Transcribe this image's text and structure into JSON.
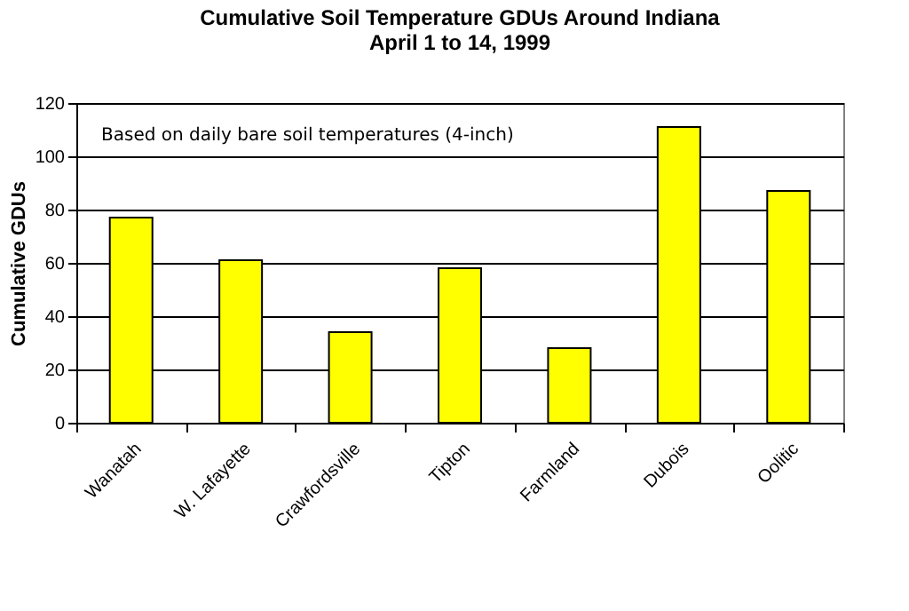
{
  "chart_data": {
    "type": "bar",
    "title": "Cumulative Soil Temperature GDUs Around Indiana",
    "subtitle": "April 1 to 14, 1999",
    "ylabel": "Cumulative GDUs",
    "categories": [
      "Wanatah",
      "W. Lafayette",
      "Crawfordsville",
      "Tipton",
      "Farmland",
      "Dubois",
      "Oolitic"
    ],
    "values": [
      77,
      61,
      34,
      58,
      28,
      111,
      87
    ],
    "color": "#ffff00",
    "ylim": [
      0,
      120
    ],
    "yticks": [
      0,
      20,
      40,
      60,
      80,
      100,
      120
    ],
    "grid": "y",
    "annotations": [
      "Based on daily bare soil temperatures (4-inch)"
    ]
  }
}
